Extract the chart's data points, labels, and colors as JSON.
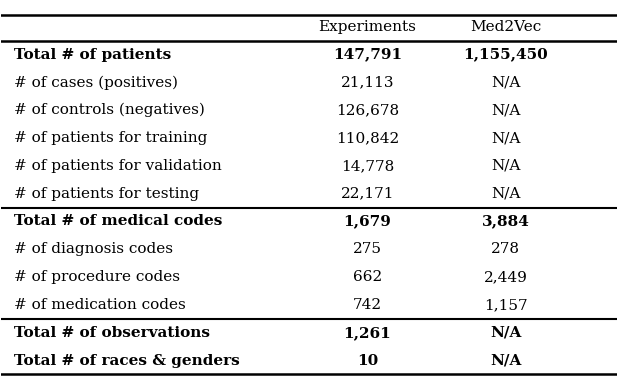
{
  "col_headers": [
    "",
    "Experiments",
    "Med2Vec"
  ],
  "rows": [
    [
      "Total # of patients",
      "147,791",
      "1,155,450"
    ],
    [
      "# of cases (positives)",
      "21,113",
      "N/A"
    ],
    [
      "# of controls (negatives)",
      "126,678",
      "N/A"
    ],
    [
      "# of patients for training",
      "110,842",
      "N/A"
    ],
    [
      "# of patients for validation",
      "14,778",
      "N/A"
    ],
    [
      "# of patients for testing",
      "22,171",
      "N/A"
    ],
    [
      "Total # of medical codes",
      "1,679",
      "3,884"
    ],
    [
      "# of diagnosis codes",
      "275",
      "278"
    ],
    [
      "# of procedure codes",
      "662",
      "2,449"
    ],
    [
      "# of medication codes",
      "742",
      "1,157"
    ],
    [
      "Total # of observations",
      "1,261",
      "N/A"
    ],
    [
      "Total # of races & genders",
      "10",
      "N/A"
    ]
  ],
  "section_dividers_after": [
    6,
    10
  ],
  "bold_rows": [
    0,
    6,
    10,
    11
  ],
  "background_color": "#ffffff",
  "font_size": 11.0,
  "header_font_size": 11.0
}
